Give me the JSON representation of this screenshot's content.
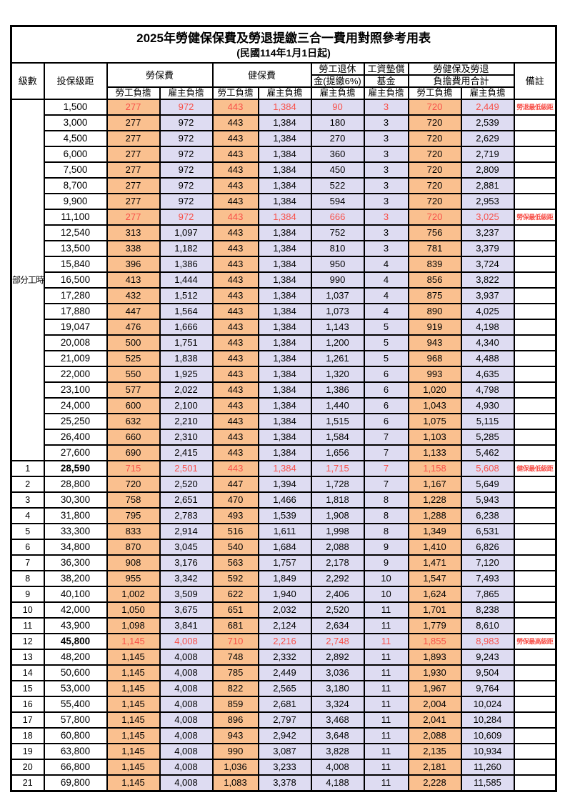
{
  "title": "2025年勞健保保費及勞退提繳三合一費用對照參考用表",
  "subtitle": "(民國114年1月1日起)",
  "header": {
    "level": "級數",
    "salary_bracket": "投保級距",
    "labor_insurance": "勞保費",
    "health_insurance": "健保費",
    "pension_line1": "勞工退休",
    "pension_line2": "金(提繳6%)",
    "wage_fund_line1": "工資墊償",
    "wage_fund_line2": "基金",
    "total_line1": "勞健保及勞退",
    "total_line2": "負擔費用合計",
    "remark": "備註",
    "employee_share": "勞工負擔",
    "employer_share": "雇主負擔"
  },
  "part_time_label": "部分工時",
  "part_time_rowspan": 23,
  "colors": {
    "employee_bg": "#FAC08F",
    "employer_bg": "#DEDCF2",
    "highlight_text": "#F8514A",
    "border": "#000000"
  },
  "rows": [
    {
      "level": "",
      "salary": "1,500",
      "cells": [
        "277",
        "972",
        "443",
        "1,384",
        "90",
        "3",
        "720",
        "2,449"
      ],
      "note": "勞退最低級距",
      "highlight": true,
      "bold_salary": false
    },
    {
      "level": "",
      "salary": "3,000",
      "cells": [
        "277",
        "972",
        "443",
        "1,384",
        "180",
        "3",
        "720",
        "2,539"
      ],
      "note": "",
      "highlight": false,
      "bold_salary": false
    },
    {
      "level": "",
      "salary": "4,500",
      "cells": [
        "277",
        "972",
        "443",
        "1,384",
        "270",
        "3",
        "720",
        "2,629"
      ],
      "note": "",
      "highlight": false,
      "bold_salary": false
    },
    {
      "level": "",
      "salary": "6,000",
      "cells": [
        "277",
        "972",
        "443",
        "1,384",
        "360",
        "3",
        "720",
        "2,719"
      ],
      "note": "",
      "highlight": false,
      "bold_salary": false
    },
    {
      "level": "",
      "salary": "7,500",
      "cells": [
        "277",
        "972",
        "443",
        "1,384",
        "450",
        "3",
        "720",
        "2,809"
      ],
      "note": "",
      "highlight": false,
      "bold_salary": false
    },
    {
      "level": "",
      "salary": "8,700",
      "cells": [
        "277",
        "972",
        "443",
        "1,384",
        "522",
        "3",
        "720",
        "2,881"
      ],
      "note": "",
      "highlight": false,
      "bold_salary": false
    },
    {
      "level": "",
      "salary": "9,900",
      "cells": [
        "277",
        "972",
        "443",
        "1,384",
        "594",
        "3",
        "720",
        "2,953"
      ],
      "note": "",
      "highlight": false,
      "bold_salary": false
    },
    {
      "level": "",
      "salary": "11,100",
      "cells": [
        "277",
        "972",
        "443",
        "1,384",
        "666",
        "3",
        "720",
        "3,025"
      ],
      "note": "勞保最低級距",
      "highlight": true,
      "bold_salary": false
    },
    {
      "level": "",
      "salary": "12,540",
      "cells": [
        "313",
        "1,097",
        "443",
        "1,384",
        "752",
        "3",
        "756",
        "3,237"
      ],
      "note": "",
      "highlight": false,
      "bold_salary": false
    },
    {
      "level": "",
      "salary": "13,500",
      "cells": [
        "338",
        "1,182",
        "443",
        "1,384",
        "810",
        "3",
        "781",
        "3,379"
      ],
      "note": "",
      "highlight": false,
      "bold_salary": false
    },
    {
      "level": "",
      "salary": "15,840",
      "cells": [
        "396",
        "1,386",
        "443",
        "1,384",
        "950",
        "4",
        "839",
        "3,724"
      ],
      "note": "",
      "highlight": false,
      "bold_salary": false
    },
    {
      "level": "",
      "salary": "16,500",
      "cells": [
        "413",
        "1,444",
        "443",
        "1,384",
        "990",
        "4",
        "856",
        "3,822"
      ],
      "note": "",
      "highlight": false,
      "bold_salary": false
    },
    {
      "level": "",
      "salary": "17,280",
      "cells": [
        "432",
        "1,512",
        "443",
        "1,384",
        "1,037",
        "4",
        "875",
        "3,937"
      ],
      "note": "",
      "highlight": false,
      "bold_salary": false
    },
    {
      "level": "",
      "salary": "17,880",
      "cells": [
        "447",
        "1,564",
        "443",
        "1,384",
        "1,073",
        "4",
        "890",
        "4,025"
      ],
      "note": "",
      "highlight": false,
      "bold_salary": false
    },
    {
      "level": "",
      "salary": "19,047",
      "cells": [
        "476",
        "1,666",
        "443",
        "1,384",
        "1,143",
        "5",
        "919",
        "4,198"
      ],
      "note": "",
      "highlight": false,
      "bold_salary": false
    },
    {
      "level": "",
      "salary": "20,008",
      "cells": [
        "500",
        "1,751",
        "443",
        "1,384",
        "1,200",
        "5",
        "943",
        "4,340"
      ],
      "note": "",
      "highlight": false,
      "bold_salary": false
    },
    {
      "level": "",
      "salary": "21,009",
      "cells": [
        "525",
        "1,838",
        "443",
        "1,384",
        "1,261",
        "5",
        "968",
        "4,488"
      ],
      "note": "",
      "highlight": false,
      "bold_salary": false
    },
    {
      "level": "",
      "salary": "22,000",
      "cells": [
        "550",
        "1,925",
        "443",
        "1,384",
        "1,320",
        "6",
        "993",
        "4,635"
      ],
      "note": "",
      "highlight": false,
      "bold_salary": false
    },
    {
      "level": "",
      "salary": "23,100",
      "cells": [
        "577",
        "2,022",
        "443",
        "1,384",
        "1,386",
        "6",
        "1,020",
        "4,798"
      ],
      "note": "",
      "highlight": false,
      "bold_salary": false
    },
    {
      "level": "",
      "salary": "24,000",
      "cells": [
        "600",
        "2,100",
        "443",
        "1,384",
        "1,440",
        "6",
        "1,043",
        "4,930"
      ],
      "note": "",
      "highlight": false,
      "bold_salary": false
    },
    {
      "level": "",
      "salary": "25,250",
      "cells": [
        "632",
        "2,210",
        "443",
        "1,384",
        "1,515",
        "6",
        "1,075",
        "5,115"
      ],
      "note": "",
      "highlight": false,
      "bold_salary": false
    },
    {
      "level": "",
      "salary": "26,400",
      "cells": [
        "660",
        "2,310",
        "443",
        "1,384",
        "1,584",
        "7",
        "1,103",
        "5,285"
      ],
      "note": "",
      "highlight": false,
      "bold_salary": false
    },
    {
      "level": "",
      "salary": "27,600",
      "cells": [
        "690",
        "2,415",
        "443",
        "1,384",
        "1,656",
        "7",
        "1,133",
        "5,462"
      ],
      "note": "",
      "highlight": false,
      "bold_salary": false
    },
    {
      "level": "1",
      "salary": "28,590",
      "cells": [
        "715",
        "2,501",
        "443",
        "1,384",
        "1,715",
        "7",
        "1,158",
        "5,608"
      ],
      "note": "健保最低級距",
      "highlight": true,
      "bold_salary": true
    },
    {
      "level": "2",
      "salary": "28,800",
      "cells": [
        "720",
        "2,520",
        "447",
        "1,394",
        "1,728",
        "7",
        "1,167",
        "5,649"
      ],
      "note": "",
      "highlight": false,
      "bold_salary": false
    },
    {
      "level": "3",
      "salary": "30,300",
      "cells": [
        "758",
        "2,651",
        "470",
        "1,466",
        "1,818",
        "8",
        "1,228",
        "5,943"
      ],
      "note": "",
      "highlight": false,
      "bold_salary": false
    },
    {
      "level": "4",
      "salary": "31,800",
      "cells": [
        "795",
        "2,783",
        "493",
        "1,539",
        "1,908",
        "8",
        "1,288",
        "6,238"
      ],
      "note": "",
      "highlight": false,
      "bold_salary": false
    },
    {
      "level": "5",
      "salary": "33,300",
      "cells": [
        "833",
        "2,914",
        "516",
        "1,611",
        "1,998",
        "8",
        "1,349",
        "6,531"
      ],
      "note": "",
      "highlight": false,
      "bold_salary": false
    },
    {
      "level": "6",
      "salary": "34,800",
      "cells": [
        "870",
        "3,045",
        "540",
        "1,684",
        "2,088",
        "9",
        "1,410",
        "6,826"
      ],
      "note": "",
      "highlight": false,
      "bold_salary": false
    },
    {
      "level": "7",
      "salary": "36,300",
      "cells": [
        "908",
        "3,176",
        "563",
        "1,757",
        "2,178",
        "9",
        "1,471",
        "7,120"
      ],
      "note": "",
      "highlight": false,
      "bold_salary": false
    },
    {
      "level": "8",
      "salary": "38,200",
      "cells": [
        "955",
        "3,342",
        "592",
        "1,849",
        "2,292",
        "10",
        "1,547",
        "7,493"
      ],
      "note": "",
      "highlight": false,
      "bold_salary": false
    },
    {
      "level": "9",
      "salary": "40,100",
      "cells": [
        "1,002",
        "3,509",
        "622",
        "1,940",
        "2,406",
        "10",
        "1,624",
        "7,865"
      ],
      "note": "",
      "highlight": false,
      "bold_salary": false
    },
    {
      "level": "10",
      "salary": "42,000",
      "cells": [
        "1,050",
        "3,675",
        "651",
        "2,032",
        "2,520",
        "11",
        "1,701",
        "8,238"
      ],
      "note": "",
      "highlight": false,
      "bold_salary": false
    },
    {
      "level": "11",
      "salary": "43,900",
      "cells": [
        "1,098",
        "3,841",
        "681",
        "2,124",
        "2,634",
        "11",
        "1,779",
        "8,610"
      ],
      "note": "",
      "highlight": false,
      "bold_salary": false
    },
    {
      "level": "12",
      "salary": "45,800",
      "cells": [
        "1,145",
        "4,008",
        "710",
        "2,216",
        "2,748",
        "11",
        "1,855",
        "8,983"
      ],
      "note": "勞保最高級距",
      "highlight": true,
      "bold_salary": true
    },
    {
      "level": "13",
      "salary": "48,200",
      "cells": [
        "1,145",
        "4,008",
        "748",
        "2,332",
        "2,892",
        "11",
        "1,893",
        "9,243"
      ],
      "note": "",
      "highlight": false,
      "bold_salary": false
    },
    {
      "level": "14",
      "salary": "50,600",
      "cells": [
        "1,145",
        "4,008",
        "785",
        "2,449",
        "3,036",
        "11",
        "1,930",
        "9,504"
      ],
      "note": "",
      "highlight": false,
      "bold_salary": false
    },
    {
      "level": "15",
      "salary": "53,000",
      "cells": [
        "1,145",
        "4,008",
        "822",
        "2,565",
        "3,180",
        "11",
        "1,967",
        "9,764"
      ],
      "note": "",
      "highlight": false,
      "bold_salary": false
    },
    {
      "level": "16",
      "salary": "55,400",
      "cells": [
        "1,145",
        "4,008",
        "859",
        "2,681",
        "3,324",
        "11",
        "2,004",
        "10,024"
      ],
      "note": "",
      "highlight": false,
      "bold_salary": false
    },
    {
      "level": "17",
      "salary": "57,800",
      "cells": [
        "1,145",
        "4,008",
        "896",
        "2,797",
        "3,468",
        "11",
        "2,041",
        "10,284"
      ],
      "note": "",
      "highlight": false,
      "bold_salary": false
    },
    {
      "level": "18",
      "salary": "60,800",
      "cells": [
        "1,145",
        "4,008",
        "943",
        "2,942",
        "3,648",
        "11",
        "2,088",
        "10,609"
      ],
      "note": "",
      "highlight": false,
      "bold_salary": false
    },
    {
      "level": "19",
      "salary": "63,800",
      "cells": [
        "1,145",
        "4,008",
        "990",
        "3,087",
        "3,828",
        "11",
        "2,135",
        "10,934"
      ],
      "note": "",
      "highlight": false,
      "bold_salary": false
    },
    {
      "level": "20",
      "salary": "66,800",
      "cells": [
        "1,145",
        "4,008",
        "1,036",
        "3,233",
        "4,008",
        "11",
        "2,181",
        "11,260"
      ],
      "note": "",
      "highlight": false,
      "bold_salary": false
    },
    {
      "level": "21",
      "salary": "69,800",
      "cells": [
        "1,145",
        "4,008",
        "1,083",
        "3,378",
        "4,188",
        "11",
        "2,228",
        "11,585"
      ],
      "note": "",
      "highlight": false,
      "bold_salary": false
    }
  ]
}
